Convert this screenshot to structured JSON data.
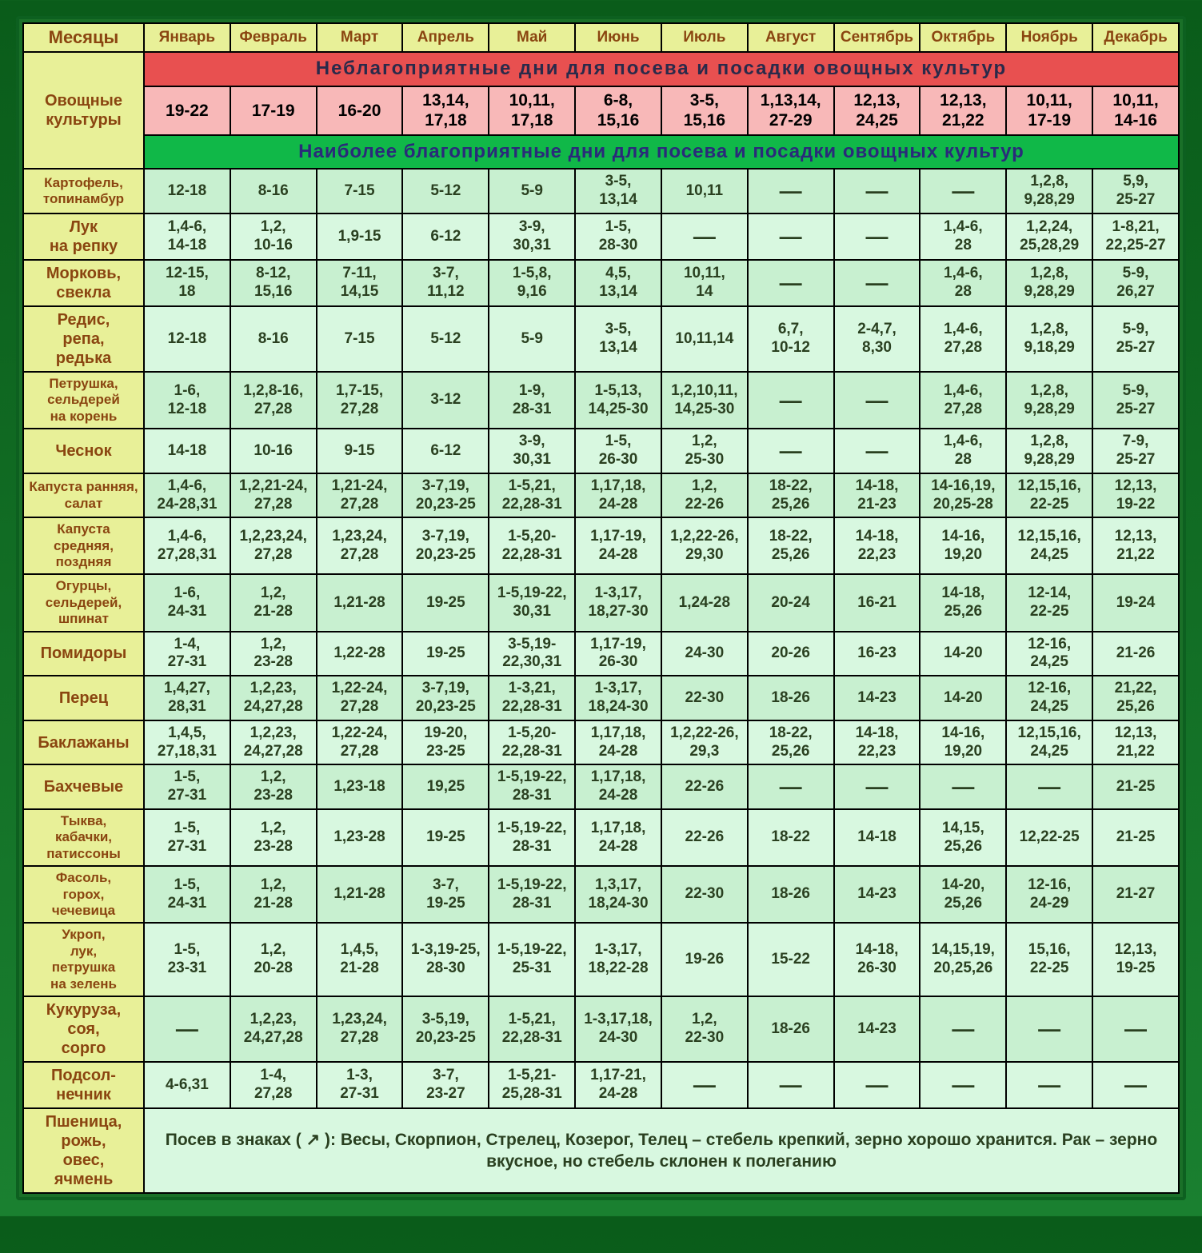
{
  "header": {
    "corner": "Месяцы",
    "months": [
      "Январь",
      "Февраль",
      "Март",
      "Апрель",
      "Май",
      "Июнь",
      "Июль",
      "Август",
      "Сентябрь",
      "Октябрь",
      "Ноябрь",
      "Декабрь"
    ]
  },
  "sideLabel": "Овощные культуры",
  "unfavorableTitle": "Неблагоприятные дни для посева и посадки овощных культур",
  "favorableTitle": "Наиболее благоприятные дни для посева и посадки овощных культур",
  "unfavorable": [
    "19-22",
    "17-19",
    "16-20",
    "13,14, 17,18",
    "10,11, 17,18",
    "6-8, 15,16",
    "3-5, 15,16",
    "1,13,14, 27-29",
    "12,13, 24,25",
    "12,13, 21,22",
    "10,11, 17-19",
    "10,11, 14-16"
  ],
  "rows": [
    {
      "label": "Картофель, топинамбур",
      "cells": [
        "12-18",
        "8-16",
        "7-15",
        "5-12",
        "5-9",
        "3-5, 13,14",
        "10,11",
        "—",
        "—",
        "—",
        "1,2,8, 9,28,29",
        "5,9, 25-27"
      ]
    },
    {
      "label": "Лук на репку",
      "cells": [
        "1,4-6, 14-18",
        "1,2, 10-16",
        "1,9-15",
        "6-12",
        "3-9, 30,31",
        "1-5, 28-30",
        "—",
        "—",
        "—",
        "1,4-6, 28",
        "1,2,24, 25,28,29",
        "1-8,21, 22,25-27"
      ]
    },
    {
      "label": "Морковь, свекла",
      "cells": [
        "12-15, 18",
        "8-12, 15,16",
        "7-11, 14,15",
        "3-7, 11,12",
        "1-5,8, 9,16",
        "4,5, 13,14",
        "10,11, 14",
        "—",
        "—",
        "1,4-6, 28",
        "1,2,8, 9,28,29",
        "5-9, 26,27"
      ]
    },
    {
      "label": "Редис, репа, редька",
      "cells": [
        "12-18",
        "8-16",
        "7-15",
        "5-12",
        "5-9",
        "3-5, 13,14",
        "10,11,14",
        "6,7, 10-12",
        "2-4,7, 8,30",
        "1,4-6, 27,28",
        "1,2,8, 9,18,29",
        "5-9, 25-27"
      ]
    },
    {
      "label": "Петрушка, сельдерей на корень",
      "cells": [
        "1-6, 12-18",
        "1,2,8-16, 27,28",
        "1,7-15, 27,28",
        "3-12",
        "1-9, 28-31",
        "1-5,13, 14,25-30",
        "1,2,10,11, 14,25-30",
        "—",
        "—",
        "1,4-6, 27,28",
        "1,2,8, 9,28,29",
        "5-9, 25-27"
      ]
    },
    {
      "label": "Чеснок",
      "cells": [
        "14-18",
        "10-16",
        "9-15",
        "6-12",
        "3-9, 30,31",
        "1-5, 26-30",
        "1,2, 25-30",
        "—",
        "—",
        "1,4-6, 28",
        "1,2,8, 9,28,29",
        "7-9, 25-27"
      ]
    },
    {
      "label": "Капуста ранняя, салат",
      "cells": [
        "1,4-6, 24-28,31",
        "1,2,21-24, 27,28",
        "1,21-24, 27,28",
        "3-7,19, 20,23-25",
        "1-5,21, 22,28-31",
        "1,17,18, 24-28",
        "1,2, 22-26",
        "18-22, 25,26",
        "14-18, 21-23",
        "14-16,19, 20,25-28",
        "12,15,16, 22-25",
        "12,13, 19-22"
      ]
    },
    {
      "label": "Капуста средняя, поздняя",
      "cells": [
        "1,4-6, 27,28,31",
        "1,2,23,24, 27,28",
        "1,23,24, 27,28",
        "3-7,19, 20,23-25",
        "1-5,20- 22,28-31",
        "1,17-19, 24-28",
        "1,2,22-26, 29,30",
        "18-22, 25,26",
        "14-18, 22,23",
        "14-16, 19,20",
        "12,15,16, 24,25",
        "12,13, 21,22"
      ]
    },
    {
      "label": "Огурцы, сельдерей, шпинат",
      "cells": [
        "1-6, 24-31",
        "1,2, 21-28",
        "1,21-28",
        "19-25",
        "1-5,19-22, 30,31",
        "1-3,17, 18,27-30",
        "1,24-28",
        "20-24",
        "16-21",
        "14-18, 25,26",
        "12-14, 22-25",
        "19-24"
      ]
    },
    {
      "label": "Помидоры",
      "cells": [
        "1-4, 27-31",
        "1,2, 23-28",
        "1,22-28",
        "19-25",
        "3-5,19- 22,30,31",
        "1,17-19, 26-30",
        "24-30",
        "20-26",
        "16-23",
        "14-20",
        "12-16, 24,25",
        "21-26"
      ]
    },
    {
      "label": "Перец",
      "cells": [
        "1,4,27, 28,31",
        "1,2,23, 24,27,28",
        "1,22-24, 27,28",
        "3-7,19, 20,23-25",
        "1-3,21, 22,28-31",
        "1-3,17, 18,24-30",
        "22-30",
        "18-26",
        "14-23",
        "14-20",
        "12-16, 24,25",
        "21,22, 25,26"
      ]
    },
    {
      "label": "Баклажаны",
      "cells": [
        "1,4,5, 27,18,31",
        "1,2,23, 24,27,28",
        "1,22-24, 27,28",
        "19-20, 23-25",
        "1-5,20- 22,28-31",
        "1,17,18, 24-28",
        "1,2,22-26, 29,3",
        "18-22, 25,26",
        "14-18, 22,23",
        "14-16, 19,20",
        "12,15,16, 24,25",
        "12,13, 21,22"
      ]
    },
    {
      "label": "Бахчевые",
      "cells": [
        "1-5, 27-31",
        "1,2, 23-28",
        "1,23-18",
        "19,25",
        "1-5,19-22, 28-31",
        "1,17,18, 24-28",
        "22-26",
        "—",
        "—",
        "—",
        "—",
        "21-25"
      ]
    },
    {
      "label": "Тыква, кабачки, патиссоны",
      "cells": [
        "1-5, 27-31",
        "1,2, 23-28",
        "1,23-28",
        "19-25",
        "1-5,19-22, 28-31",
        "1,17,18, 24-28",
        "22-26",
        "18-22",
        "14-18",
        "14,15, 25,26",
        "12,22-25",
        "21-25"
      ]
    },
    {
      "label": "Фасоль, горох, чечевица",
      "cells": [
        "1-5, 24-31",
        "1,2, 21-28",
        "1,21-28",
        "3-7, 19-25",
        "1-5,19-22, 28-31",
        "1,3,17, 18,24-30",
        "22-30",
        "18-26",
        "14-23",
        "14-20, 25,26",
        "12-16, 24-29",
        "21-27"
      ]
    },
    {
      "label": "Укроп, лук, петрушка на зелень",
      "cells": [
        "1-5, 23-31",
        "1,2, 20-28",
        "1,4,5, 21-28",
        "1-3,19-25, 28-30",
        "1-5,19-22, 25-31",
        "1-3,17, 18,22-28",
        "19-26",
        "15-22",
        "14-18, 26-30",
        "14,15,19, 20,25,26",
        "15,16, 22-25",
        "12,13, 19-25"
      ]
    },
    {
      "label": "Кукуруза, соя, сорго",
      "cells": [
        "—",
        "1,2,23, 24,27,28",
        "1,23,24, 27,28",
        "3-5,19, 20,23-25",
        "1-5,21, 22,28-31",
        "1-3,17,18, 24-30",
        "1,2, 22-30",
        "18-26",
        "14-23",
        "—",
        "—",
        "—"
      ]
    },
    {
      "label": "Подсол- нечник",
      "cells": [
        "4-6,31",
        "1-4, 27,28",
        "1-3, 27-31",
        "3-7, 23-27",
        "1-5,21- 25,28-31",
        "1,17-21, 24-28",
        "—",
        "—",
        "—",
        "—",
        "—",
        "—"
      ]
    }
  ],
  "footer": {
    "label": "Пшеница, рожь, овес, ячмень",
    "note": "Посев в знаках ( ↗ ): Весы, Скорпион, Стрелец, Козерог, Телец – стебель крепкий, зерно хорошо хранится. Рак – зерно вкусное, но стебель склонен к полеганию"
  },
  "styling": {
    "border_color": "#000000",
    "header_bg": "#e8f098",
    "header_text": "#8a4510",
    "unfav_title_bg": "#e85050",
    "unfav_cell_bg": "#f8b8b8",
    "fav_title_bg": "#10b848",
    "data_bg": "#c8f0d0",
    "data_bg_alt": "#d8f8e0",
    "font_family": "Arial",
    "cell_fontsize_pt": 14,
    "header_fontsize_pt": 15,
    "title_fontsize_pt": 18
  }
}
